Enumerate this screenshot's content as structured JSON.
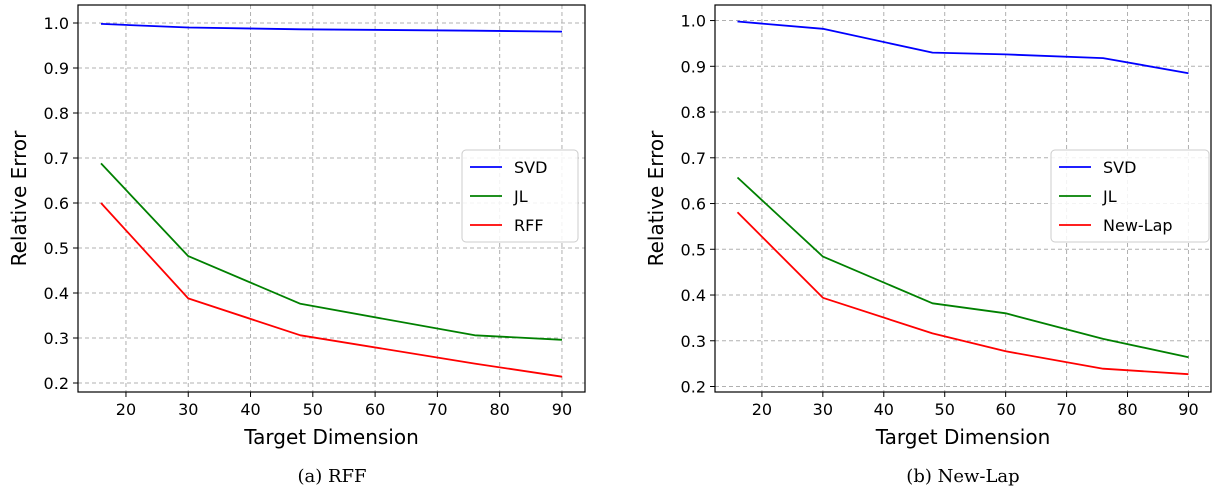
{
  "chart_data": [
    {
      "type": "line",
      "caption": "(a) RFF",
      "xlabel": "Target Dimension",
      "ylabel": "Relative Error",
      "xlim": [
        12.3,
        93.7
      ],
      "ylim": [
        0.18,
        1.04
      ],
      "xticks": [
        20,
        30,
        40,
        50,
        60,
        70,
        80,
        90
      ],
      "yticks": [
        0.2,
        0.3,
        0.4,
        0.5,
        0.6,
        0.7,
        0.8,
        0.9,
        1.0
      ],
      "ytick_labels": [
        "0.2",
        "0.3",
        "0.4",
        "0.5",
        "0.6",
        "0.7",
        "0.8",
        "0.9",
        "1.0"
      ],
      "grid": true,
      "legend_position": "center-right",
      "x": [
        16,
        30,
        48,
        76,
        90
      ],
      "series": [
        {
          "name": "SVD",
          "color": "#0000ff",
          "values": [
            0.998,
            0.99,
            0.986,
            0.983,
            0.981
          ]
        },
        {
          "name": "JL",
          "color": "#008000",
          "values": [
            0.688,
            0.482,
            0.376,
            0.306,
            0.296
          ]
        },
        {
          "name": "RFF",
          "color": "#ff0000",
          "values": [
            0.6,
            0.388,
            0.306,
            0.243,
            0.214
          ]
        }
      ]
    },
    {
      "type": "line",
      "caption": "(b) New-Lap",
      "xlabel": "Target Dimension",
      "ylabel": "Relative Error",
      "xlim": [
        12.3,
        93.7
      ],
      "ylim": [
        0.188,
        1.034
      ],
      "xticks": [
        20,
        30,
        40,
        50,
        60,
        70,
        80,
        90
      ],
      "yticks": [
        0.2,
        0.3,
        0.4,
        0.5,
        0.6,
        0.7,
        0.8,
        0.9,
        1.0
      ],
      "ytick_labels": [
        "0.2",
        "0.3",
        "0.4",
        "0.5",
        "0.6",
        "0.7",
        "0.8",
        "0.9",
        "1.0"
      ],
      "grid": true,
      "legend_position": "center-right",
      "x": [
        16,
        30,
        48,
        60,
        76,
        90
      ],
      "series": [
        {
          "name": "SVD",
          "color": "#0000ff",
          "values": [
            0.998,
            0.982,
            0.93,
            0.926,
            0.918,
            0.885
          ]
        },
        {
          "name": "JL",
          "color": "#008000",
          "values": [
            0.657,
            0.484,
            0.382,
            0.36,
            0.304,
            0.264
          ]
        },
        {
          "name": "New-Lap",
          "color": "#ff0000",
          "values": [
            0.581,
            0.394,
            0.316,
            0.277,
            0.239,
            0.227
          ]
        }
      ]
    }
  ]
}
